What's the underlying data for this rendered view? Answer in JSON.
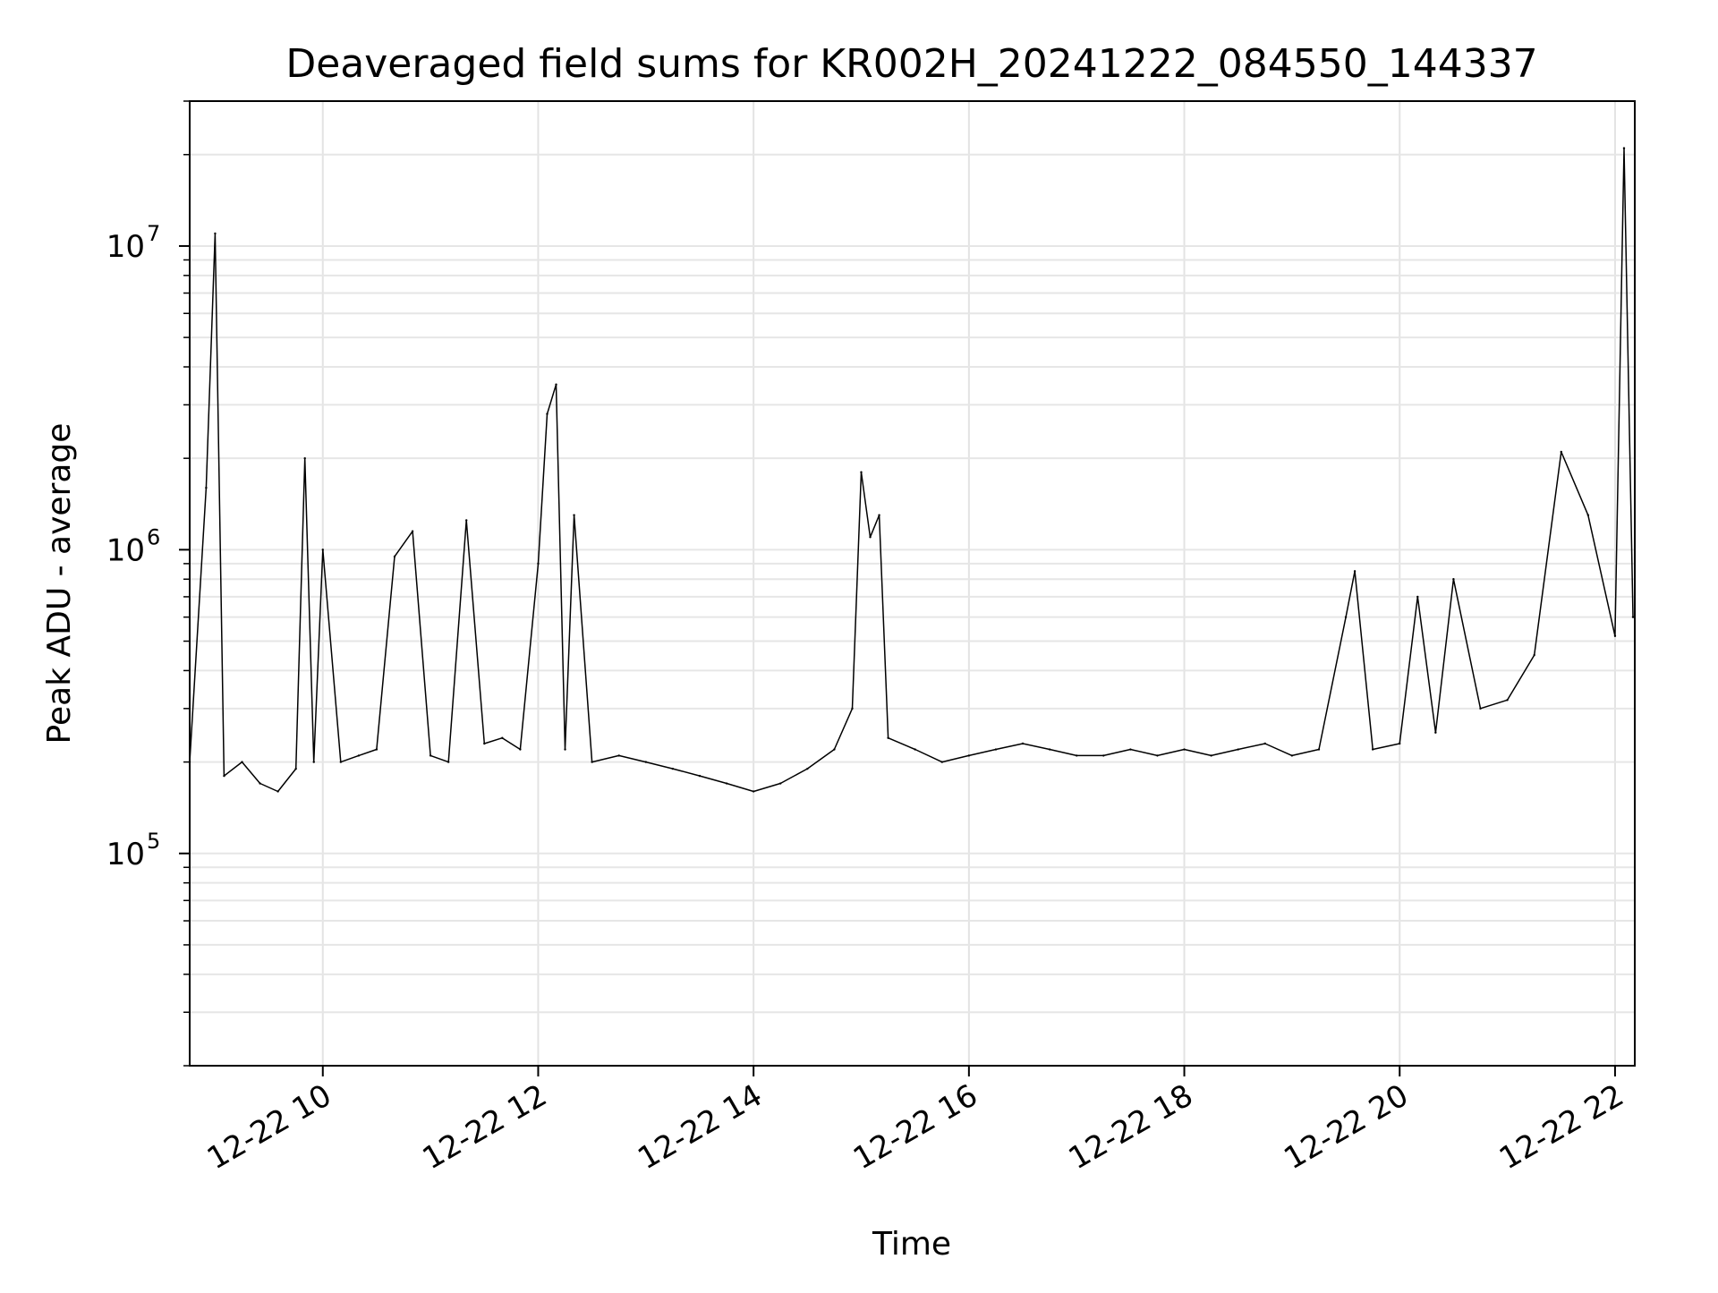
{
  "chart_data": {
    "type": "line",
    "title": "Deaveraged field sums for KR002H_20241222_084550_144337",
    "xlabel": "Time",
    "ylabel": "Peak ADU - average",
    "yscale": "log",
    "ylim": [
      20000,
      30000000
    ],
    "xlim": [
      "2024-12-22 08:45:50",
      "2024-12-22 22:11:00"
    ],
    "grid": true,
    "line_color": "#000000",
    "x_ticks": [
      {
        "label": "12-22 10",
        "value": "2024-12-22 10:00"
      },
      {
        "label": "12-22 12",
        "value": "2024-12-22 12:00"
      },
      {
        "label": "12-22 14",
        "value": "2024-12-22 14:00"
      },
      {
        "label": "12-22 16",
        "value": "2024-12-22 16:00"
      },
      {
        "label": "12-22 18",
        "value": "2024-12-22 18:00"
      },
      {
        "label": "12-22 20",
        "value": "2024-12-22 20:00"
      },
      {
        "label": "12-22 22",
        "value": "2024-12-22 22:00"
      }
    ],
    "y_ticks": [
      {
        "base": "10",
        "exp": "5",
        "value": 100000
      },
      {
        "base": "10",
        "exp": "6",
        "value": 1000000
      },
      {
        "base": "10",
        "exp": "7",
        "value": 10000000
      }
    ],
    "series": [
      {
        "x": [
          "2024-12-22 08:45:50",
          "2024-12-22 08:55",
          "2024-12-22 09:00",
          "2024-12-22 09:05",
          "2024-12-22 09:15",
          "2024-12-22 09:25",
          "2024-12-22 09:35",
          "2024-12-22 09:45",
          "2024-12-22 09:50",
          "2024-12-22 09:55",
          "2024-12-22 10:00",
          "2024-12-22 10:10",
          "2024-12-22 10:20",
          "2024-12-22 10:30",
          "2024-12-22 10:40",
          "2024-12-22 10:50",
          "2024-12-22 11:00",
          "2024-12-22 11:10",
          "2024-12-22 11:20",
          "2024-12-22 11:30",
          "2024-12-22 11:40",
          "2024-12-22 11:50",
          "2024-12-22 12:00",
          "2024-12-22 12:05",
          "2024-12-22 12:10",
          "2024-12-22 12:15",
          "2024-12-22 12:20",
          "2024-12-22 12:30",
          "2024-12-22 12:45",
          "2024-12-22 13:00",
          "2024-12-22 13:15",
          "2024-12-22 13:30",
          "2024-12-22 13:45",
          "2024-12-22 14:00",
          "2024-12-22 14:15",
          "2024-12-22 14:30",
          "2024-12-22 14:45",
          "2024-12-22 14:55",
          "2024-12-22 15:00",
          "2024-12-22 15:05",
          "2024-12-22 15:10",
          "2024-12-22 15:15",
          "2024-12-22 15:30",
          "2024-12-22 15:45",
          "2024-12-22 16:00",
          "2024-12-22 16:15",
          "2024-12-22 16:30",
          "2024-12-22 16:45",
          "2024-12-22 17:00",
          "2024-12-22 17:15",
          "2024-12-22 17:30",
          "2024-12-22 17:45",
          "2024-12-22 18:00",
          "2024-12-22 18:15",
          "2024-12-22 18:30",
          "2024-12-22 18:45",
          "2024-12-22 19:00",
          "2024-12-22 19:15",
          "2024-12-22 19:30",
          "2024-12-22 19:35",
          "2024-12-22 19:45",
          "2024-12-22 20:00",
          "2024-12-22 20:10",
          "2024-12-22 20:20",
          "2024-12-22 20:30",
          "2024-12-22 20:45",
          "2024-12-22 21:00",
          "2024-12-22 21:15",
          "2024-12-22 21:30",
          "2024-12-22 21:45",
          "2024-12-22 22:00",
          "2024-12-22 22:05",
          "2024-12-22 22:10"
        ],
        "y": [
          200000,
          1600000,
          11000000,
          180000,
          200000,
          170000,
          160000,
          190000,
          2000000,
          200000,
          1000000,
          200000,
          210000,
          220000,
          950000,
          1150000,
          210000,
          200000,
          1250000,
          230000,
          240000,
          220000,
          900000,
          2800000,
          3500000,
          220000,
          1300000,
          200000,
          210000,
          200000,
          190000,
          180000,
          170000,
          160000,
          170000,
          190000,
          220000,
          300000,
          1800000,
          1100000,
          1300000,
          240000,
          220000,
          200000,
          210000,
          220000,
          230000,
          220000,
          210000,
          210000,
          220000,
          210000,
          220000,
          210000,
          220000,
          230000,
          210000,
          220000,
          600000,
          850000,
          220000,
          230000,
          700000,
          250000,
          800000,
          300000,
          320000,
          450000,
          2100000,
          1300000,
          520000,
          21000000,
          600000
        ]
      }
    ]
  }
}
